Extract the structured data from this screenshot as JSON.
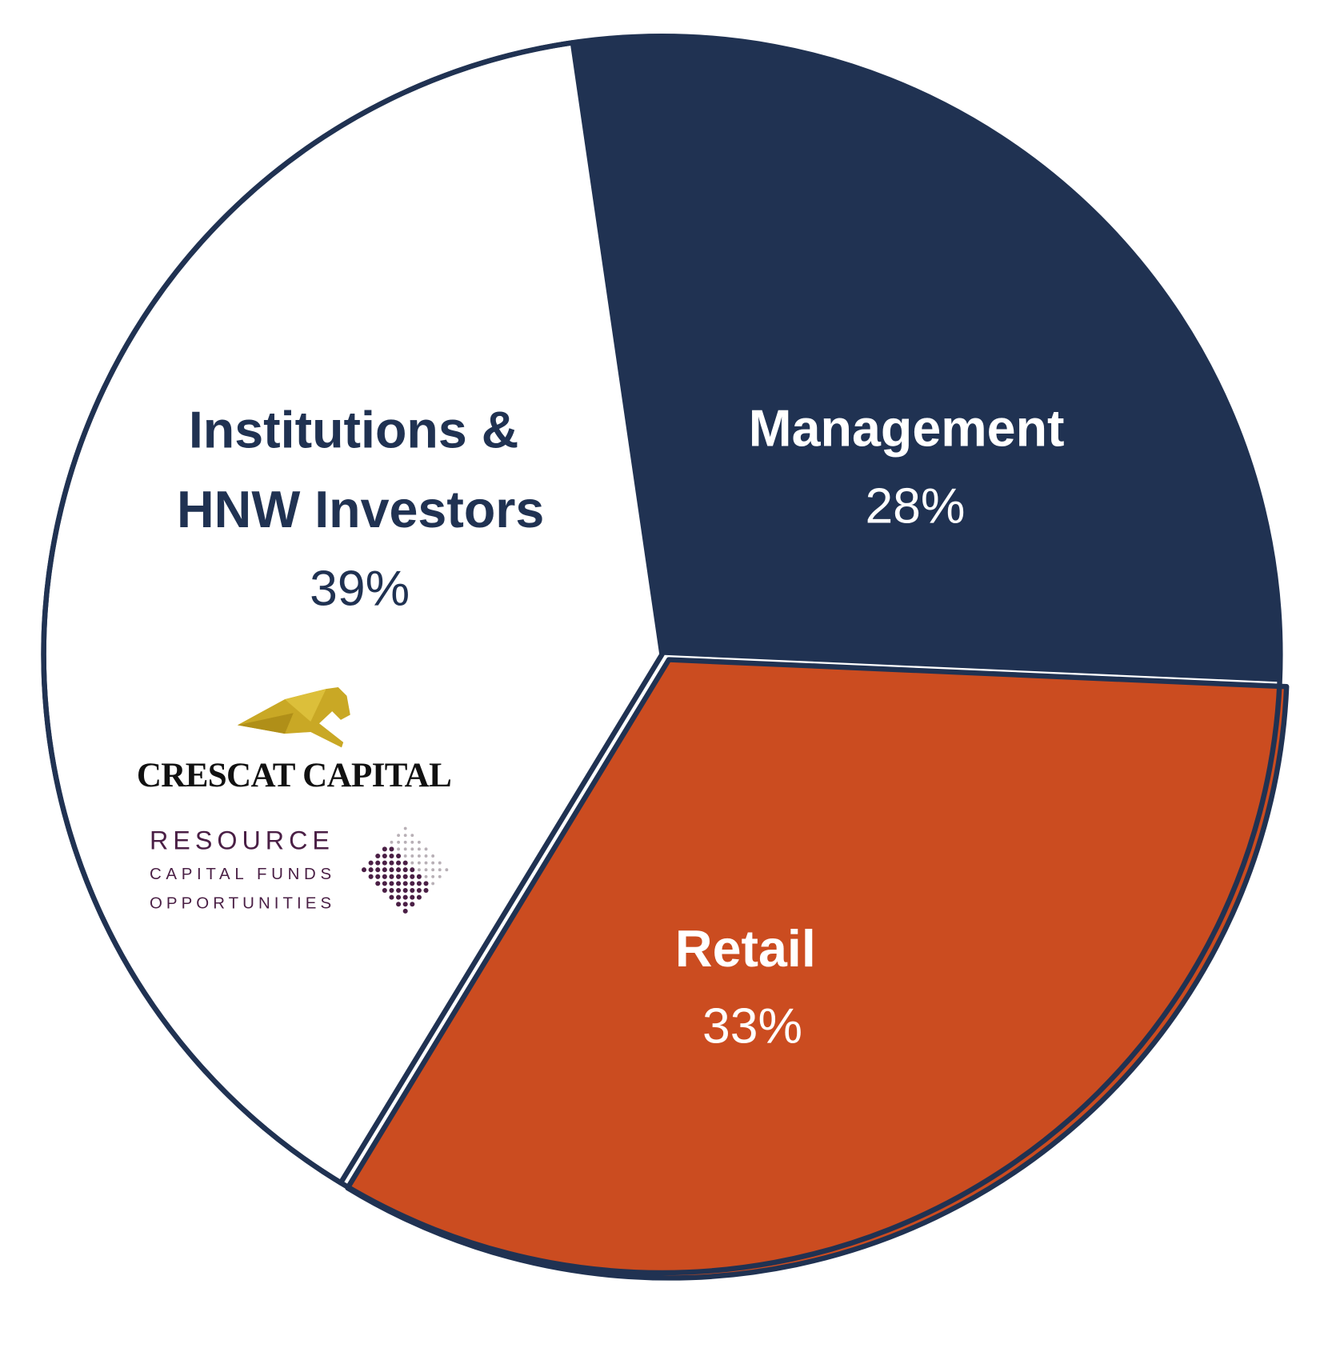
{
  "chart_data": {
    "type": "pie",
    "title": "",
    "start_angle_deg": -8.3,
    "direction": "clockwise",
    "slices": [
      {
        "label": "Management",
        "value": 28,
        "value_label": "28%",
        "color": "#203252",
        "text_color": "#ffffff"
      },
      {
        "label": "Retail",
        "value": 33,
        "value_label": "33%",
        "color": "#cb4c20",
        "text_color": "#ffffff"
      },
      {
        "label_lines": [
          "Institutions &",
          "HNW Investors"
        ],
        "label": "Institutions & HNW Investors",
        "value": 39,
        "value_label": "39%",
        "color": "#ffffff",
        "text_color": "#203252"
      }
    ],
    "outline_color": "#203252",
    "legend": "none"
  },
  "logos": {
    "crescat": {
      "text": "CRESCAT CAPITAL",
      "icon": "leaping-cat-icon",
      "color": "#c9a825"
    },
    "resource": {
      "line1": "RESOURCE",
      "line2": "CAPITAL FUNDS",
      "line3": "OPPORTUNITIES",
      "icon": "diamond-dot-grid-icon",
      "color": "#4a1f45"
    }
  }
}
